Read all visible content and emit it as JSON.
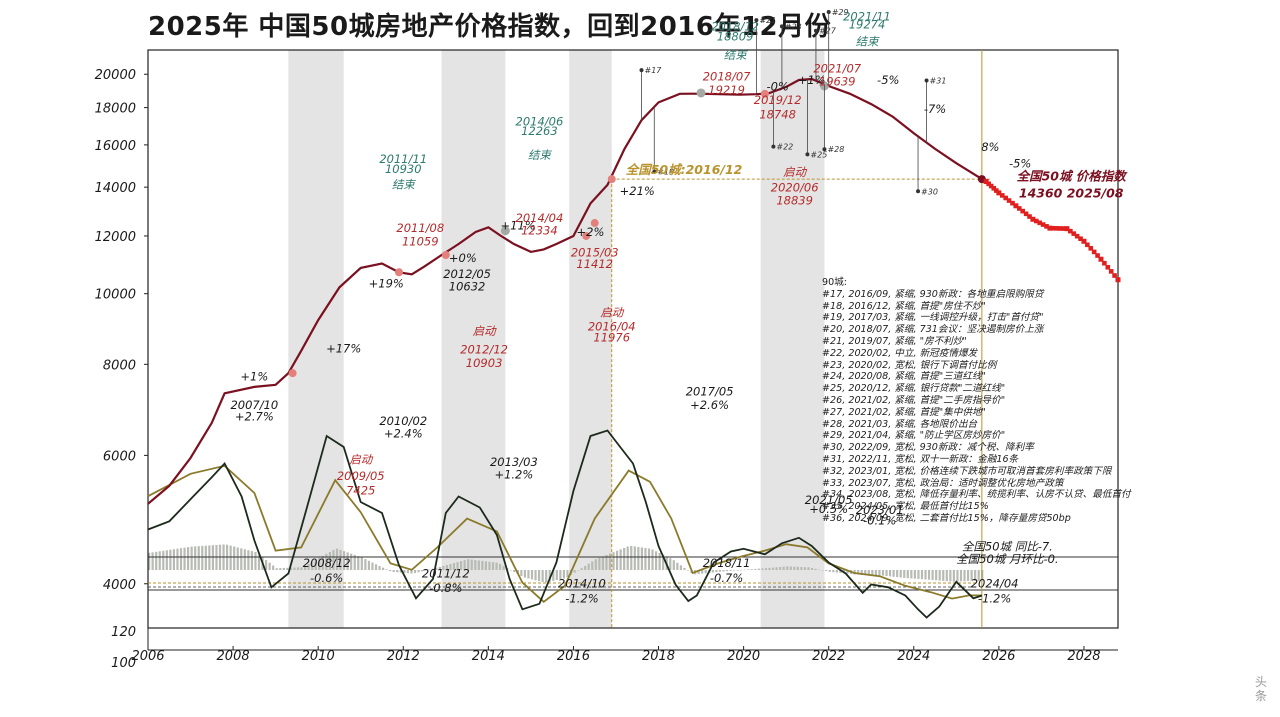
{
  "page": {
    "title": "2025年 中国50城房地产价格指数，回到2016年12月份",
    "watermark": "头条"
  },
  "colors": {
    "index_line": "#7b1020",
    "yoy_line": "#1c2a1c",
    "mom_line": "#8a7a2a",
    "bars": "#b7bbb4",
    "shade": "#e4e4e4",
    "projection": "#e01f1f",
    "marker_red": "#e3807c",
    "marker_grey": "#a5a9a5",
    "label_red": "#b52b2b",
    "label_teal": "#2d7a6e",
    "guide": "#b8932e"
  },
  "chart_data": {
    "type": "line",
    "title": "2025年 中国50城房地产价格指数，回到2016年12月份",
    "x_ticks": [
      "2006",
      "2008",
      "2010",
      "2012",
      "2014",
      "2016",
      "2018",
      "2020",
      "2022",
      "2024",
      "2026",
      "2028"
    ],
    "x_range": [
      2006,
      2028.8
    ],
    "y_ticks": [
      "4000",
      "6000",
      "8000",
      "10000",
      "12000",
      "14000",
      "16000",
      "18000",
      "20000"
    ],
    "y_ticks_bottom": [
      "120",
      "100"
    ],
    "y_scale": "log",
    "y_range": [
      3800,
      23000
    ],
    "shaded_periods": [
      [
        2009.3,
        2010.6
      ],
      [
        2012.9,
        2014.4
      ],
      [
        2015.9,
        2016.9
      ],
      [
        2020.4,
        2021.9
      ]
    ],
    "series": [
      {
        "name": "全国50城 价格指数",
        "x": [
          2006.0,
          2006.5,
          2007.0,
          2007.5,
          2007.8,
          2008.5,
          2009.0,
          2009.3,
          2009.6,
          2010.0,
          2010.5,
          2011.0,
          2011.5,
          2011.9,
          2012.2,
          2012.5,
          2012.9,
          2013.3,
          2013.7,
          2014.0,
          2014.3,
          2014.6,
          2015.0,
          2015.3,
          2015.6,
          2016.0,
          2016.4,
          2016.8,
          2017.2,
          2017.6,
          2018.0,
          2018.5,
          2018.8,
          2019.3,
          2019.9,
          2020.3,
          2020.6,
          2021.0,
          2021.3,
          2021.6,
          2022.0,
          2022.5,
          2023.0,
          2023.5,
          2024.0,
          2024.5,
          2025.0,
          2025.6
        ],
        "values": [
          5150,
          5450,
          5950,
          6650,
          7300,
          7450,
          7500,
          7780,
          8350,
          9200,
          10200,
          10850,
          11000,
          10700,
          10632,
          10900,
          11300,
          11700,
          12150,
          12334,
          12000,
          11700,
          11412,
          11500,
          11700,
          12000,
          13300,
          14100,
          15800,
          17300,
          18300,
          18800,
          18809,
          18790,
          18748,
          18780,
          18839,
          19219,
          19639,
          19700,
          19274,
          18800,
          18200,
          17500,
          16600,
          15800,
          15100,
          14360
        ]
      },
      {
        "name": "全国50城 同比",
        "x": [
          2006.0,
          2006.5,
          2007.0,
          2007.5,
          2007.8,
          2008.2,
          2008.5,
          2008.9,
          2009.3,
          2009.7,
          2010.2,
          2010.6,
          2011.0,
          2011.5,
          2011.9,
          2012.3,
          2012.7,
          2013.0,
          2013.3,
          2013.8,
          2014.2,
          2014.5,
          2014.8,
          2015.2,
          2015.6,
          2016.0,
          2016.4,
          2016.8,
          2017.1,
          2017.4,
          2017.7,
          2018.0,
          2018.4,
          2018.7,
          2018.9,
          2019.3,
          2019.7,
          2020.0,
          2020.5,
          2020.9,
          2021.3,
          2021.6,
          2022.0,
          2022.4,
          2022.8,
          2023.0,
          2023.4,
          2023.8,
          2024.1,
          2024.3,
          2024.6,
          2025.0,
          2025.4,
          2025.6
        ],
        "values": [
          5.0,
          6.5,
          10.5,
          14.5,
          17.0,
          11.0,
          3.0,
          -5.5,
          -3.0,
          8.0,
          22.0,
          20.0,
          10.0,
          8.0,
          -1.5,
          -7.5,
          -4.0,
          8.0,
          11.0,
          9.0,
          4.0,
          -4.0,
          -9.5,
          -8.5,
          -1.0,
          12.0,
          22.0,
          23.0,
          20.0,
          17.0,
          10.0,
          2.0,
          -5.0,
          -8.0,
          -7.0,
          -1.0,
          1.0,
          1.5,
          0.5,
          2.5,
          3.5,
          2.0,
          -1.0,
          -3.0,
          -6.5,
          -5.0,
          -5.5,
          -7.0,
          -9.5,
          -11.0,
          -9.0,
          -4.5,
          -7.5,
          -7.0
        ]
      },
      {
        "name": "全国50城 月环比",
        "x": [
          2006.0,
          2007.0,
          2007.8,
          2008.5,
          2009.0,
          2009.6,
          2010.4,
          2011.0,
          2011.7,
          2012.2,
          2012.8,
          2013.5,
          2014.2,
          2014.8,
          2015.3,
          2015.8,
          2016.5,
          2017.3,
          2017.8,
          2018.3,
          2018.8,
          2019.4,
          2019.9,
          2020.5,
          2021.0,
          2021.5,
          2022.0,
          2022.6,
          2023.2,
          2023.8,
          2024.4,
          2024.9,
          2025.3,
          2025.6
        ],
        "values": [
          1.9,
          2.6,
          2.85,
          2.0,
          0.2,
          0.3,
          2.4,
          1.4,
          -0.2,
          -0.4,
          0.3,
          1.2,
          0.8,
          -0.8,
          -1.4,
          -0.9,
          1.2,
          2.7,
          2.35,
          1.2,
          -0.5,
          -0.2,
          0.0,
          0.2,
          0.4,
          0.3,
          -0.2,
          -0.5,
          -0.6,
          -0.9,
          -1.1,
          -1.3,
          -1.2,
          -1.2
        ]
      }
    ],
    "projection": {
      "name": "projection",
      "x": [
        2025.7,
        2026.0,
        2026.4,
        2026.8,
        2027.2,
        2027.6,
        2028.0,
        2028.4,
        2028.8
      ],
      "values": [
        14250,
        13750,
        13200,
        12650,
        12300,
        12280,
        11800,
        11150,
        10450
      ]
    },
    "annotations": [
      {
        "x": 2008.5,
        "y": 6950,
        "text": "2007/10",
        "color": "#1a1a1a"
      },
      {
        "x": 2008.5,
        "y": 6700,
        "text": "+2.7%",
        "color": "#1a1a1a"
      },
      {
        "x": 2008.5,
        "y": 7600,
        "text": "+1%",
        "color": "#1a1a1a"
      },
      {
        "x": 2010.6,
        "y": 8300,
        "text": "+17%",
        "color": "#1a1a1a"
      },
      {
        "x": 2011.6,
        "y": 10200,
        "text": "+19%",
        "color": "#1a1a1a"
      },
      {
        "x": 2013.4,
        "y": 11050,
        "text": "+0%",
        "color": "#1a1a1a"
      },
      {
        "x": 2014.7,
        "y": 12250,
        "text": "+11%",
        "color": "#1a1a1a"
      },
      {
        "x": 2016.4,
        "y": 12000,
        "text": "+2%",
        "color": "#1a1a1a"
      },
      {
        "x": 2017.5,
        "y": 13650,
        "text": "+21%",
        "color": "#1a1a1a"
      },
      {
        "x": 2020.8,
        "y": 19000,
        "text": "-0%",
        "color": "#1a1a1a"
      },
      {
        "x": 2021.6,
        "y": 19400,
        "text": "+1%",
        "color": "#1a1a1a"
      },
      {
        "x": 2023.4,
        "y": 19400,
        "text": "-5%",
        "color": "#1a1a1a"
      },
      {
        "x": 2024.5,
        "y": 17700,
        "text": "-7%",
        "color": "#1a1a1a"
      },
      {
        "x": 2025.8,
        "y": 15700,
        "text": "8%",
        "color": "#1a1a1a"
      },
      {
        "x": 2026.5,
        "y": 14900,
        "text": "-5%",
        "color": "#1a1a1a"
      },
      {
        "x": 2012.4,
        "y": 12150,
        "text": "2011/08",
        "color": "#b52b2b"
      },
      {
        "x": 2012.4,
        "y": 11650,
        "text": "11059",
        "color": "#b52b2b"
      },
      {
        "x": 2013.5,
        "y": 10500,
        "text": "2012/05",
        "color": "#1a1a1a"
      },
      {
        "x": 2013.5,
        "y": 10100,
        "text": "10632",
        "color": "#1a1a1a"
      },
      {
        "x": 2015.2,
        "y": 12550,
        "text": "2014/04",
        "color": "#b52b2b"
      },
      {
        "x": 2015.2,
        "y": 12050,
        "text": "12334",
        "color": "#b52b2b"
      },
      {
        "x": 2016.5,
        "y": 11250,
        "text": "2015/03",
        "color": "#b52b2b"
      },
      {
        "x": 2016.5,
        "y": 10850,
        "text": "11412",
        "color": "#b52b2b"
      },
      {
        "x": 2018.6,
        "y": 14600,
        "text": "全国50城:2016/12",
        "color": "#b8932e"
      },
      {
        "x": 2019.6,
        "y": 19600,
        "text": "2018/07",
        "color": "#b52b2b"
      },
      {
        "x": 2019.6,
        "y": 18800,
        "text": "19219",
        "color": "#b52b2b"
      },
      {
        "x": 2020.8,
        "y": 18200,
        "text": "2019/12",
        "color": "#b52b2b"
      },
      {
        "x": 2020.8,
        "y": 17400,
        "text": "18748",
        "color": "#b52b2b"
      },
      {
        "x": 2022.2,
        "y": 20100,
        "text": "2021/07",
        "color": "#b52b2b"
      },
      {
        "x": 2022.2,
        "y": 19300,
        "text": "19639",
        "color": "#b52b2b"
      },
      {
        "x": 2027.7,
        "y": 14300,
        "text": "全国50城 价格指数",
        "color": "#7b1020"
      },
      {
        "x": 2027.7,
        "y": 13550,
        "text": "14360 2025/08",
        "color": "#7b1020"
      },
      {
        "x": 2012.0,
        "y": 15100,
        "text": "2011/11",
        "color": "#2d7a6e"
      },
      {
        "x": 2012.0,
        "y": 14650,
        "text": "10930",
        "color": "#2d7a6e"
      },
      {
        "x": 2012.0,
        "y": 13950,
        "text": "结束",
        "color": "#2d7a6e"
      },
      {
        "x": 2015.2,
        "y": 17000,
        "text": "2014/06",
        "color": "#2d7a6e"
      },
      {
        "x": 2015.2,
        "y": 16500,
        "text": "12263",
        "color": "#2d7a6e"
      },
      {
        "x": 2015.2,
        "y": 15300,
        "text": "结束",
        "color": "#2d7a6e"
      },
      {
        "x": 2019.8,
        "y": 22950,
        "text": "2018/12",
        "color": "#2d7a6e"
      },
      {
        "x": 2019.8,
        "y": 22250,
        "text": "18809",
        "color": "#2d7a6e"
      },
      {
        "x": 2019.8,
        "y": 21000,
        "text": "结束",
        "color": "#2d7a6e"
      },
      {
        "x": 2022.9,
        "y": 23700,
        "text": "2021/11",
        "color": "#2d7a6e"
      },
      {
        "x": 2022.9,
        "y": 23100,
        "text": "19274",
        "color": "#2d7a6e"
      },
      {
        "x": 2022.9,
        "y": 21900,
        "text": "结束",
        "color": "#2d7a6e"
      },
      {
        "x": 2013.9,
        "y": 8780,
        "text": "启动",
        "color": "#b52b2b"
      },
      {
        "x": 2013.9,
        "y": 8280,
        "text": "2012/12",
        "color": "#b52b2b"
      },
      {
        "x": 2013.9,
        "y": 7930,
        "text": "10903",
        "color": "#b52b2b"
      },
      {
        "x": 2016.9,
        "y": 9300,
        "text": "启动",
        "color": "#b52b2b"
      },
      {
        "x": 2016.9,
        "y": 8900,
        "text": "2016/04",
        "color": "#b52b2b"
      },
      {
        "x": 2016.9,
        "y": 8600,
        "text": "11976",
        "color": "#b52b2b"
      },
      {
        "x": 2021.2,
        "y": 14500,
        "text": "启动",
        "color": "#b52b2b"
      },
      {
        "x": 2021.2,
        "y": 13800,
        "text": "2020/06",
        "color": "#b52b2b"
      },
      {
        "x": 2021.2,
        "y": 13250,
        "text": "18839",
        "color": "#b52b2b"
      },
      {
        "x": 2011.0,
        "y": 5850,
        "text": "启动",
        "color": "#b52b2b"
      },
      {
        "x": 2011.0,
        "y": 5550,
        "text": "2009/05",
        "color": "#b52b2b"
      },
      {
        "x": 2011.0,
        "y": 5300,
        "text": "7425",
        "color": "#b52b2b"
      },
      {
        "x": 2012.0,
        "y": 6600,
        "text": "2010/02",
        "color": "#1a1a1a"
      },
      {
        "x": 2012.0,
        "y": 6350,
        "text": "+2.4%",
        "color": "#1a1a1a"
      },
      {
        "x": 2014.6,
        "y": 5800,
        "text": "2013/03",
        "color": "#1a1a1a"
      },
      {
        "x": 2014.6,
        "y": 5580,
        "text": "+1.2%",
        "color": "#1a1a1a"
      },
      {
        "x": 2019.2,
        "y": 7250,
        "text": "2017/05",
        "color": "#1a1a1a"
      },
      {
        "x": 2019.2,
        "y": 6950,
        "text": "+2.6%",
        "color": "#1a1a1a"
      },
      {
        "x": 2023.2,
        "y": 4990,
        "text": "2023/01",
        "color": "#1a1a1a"
      },
      {
        "x": 2023.2,
        "y": 4820,
        "text": "-0.1%",
        "color": "#1a1a1a"
      },
      {
        "x": 2022.0,
        "y": 5150,
        "text": "2021/05",
        "color": "#1a1a1a"
      },
      {
        "x": 2022.0,
        "y": 5000,
        "text": "+0.5%",
        "color": "#1a1a1a"
      },
      {
        "x": 2010.2,
        "y": 4220,
        "text": "2008/12",
        "color": "#1a1a1a"
      },
      {
        "x": 2010.2,
        "y": 4020,
        "text": "-0.6%",
        "color": "#1a1a1a"
      },
      {
        "x": 2013.0,
        "y": 4080,
        "text": "2011/12",
        "color": "#1a1a1a"
      },
      {
        "x": 2013.0,
        "y": 3900,
        "text": "-0.8%",
        "color": "#1a1a1a"
      },
      {
        "x": 2016.2,
        "y": 3950,
        "text": "2014/10",
        "color": "#1a1a1a"
      },
      {
        "x": 2016.2,
        "y": 3770,
        "text": "-1.2%",
        "color": "#1a1a1a"
      },
      {
        "x": 2019.6,
        "y": 4220,
        "text": "2018/11",
        "color": "#1a1a1a"
      },
      {
        "x": 2019.6,
        "y": 4020,
        "text": "-0.7%",
        "color": "#1a1a1a"
      },
      {
        "x": 2025.9,
        "y": 3950,
        "text": "2024/04",
        "color": "#1a1a1a"
      },
      {
        "x": 2025.9,
        "y": 3770,
        "text": "-1.2%",
        "color": "#1a1a1a"
      },
      {
        "x": 2026.2,
        "y": 4440,
        "text": "全国50城 同比-7.",
        "color": "#1a1a1a"
      },
      {
        "x": 2026.2,
        "y": 4270,
        "text": "全国50城 月环比-0.",
        "color": "#1a1a1a"
      }
    ],
    "policy_markers": [
      {
        "x": 2017.6,
        "label": "#17"
      },
      {
        "x": 2017.9,
        "label": "#19"
      },
      {
        "x": 2020.3,
        "label": "#21"
      },
      {
        "x": 2020.7,
        "label": "#22"
      },
      {
        "x": 2020.9,
        "label": "#23"
      },
      {
        "x": 2021.5,
        "label": "#25"
      },
      {
        "x": 2021.7,
        "label": "#27"
      },
      {
        "x": 2021.9,
        "label": "#28"
      },
      {
        "x": 2022.0,
        "label": "#29"
      },
      {
        "x": 2024.1,
        "label": "#30"
      },
      {
        "x": 2024.3,
        "label": "#31"
      }
    ]
  },
  "policy_notes": {
    "header": "90城:",
    "items": [
      "#17, 2016/09, 紧缩, 930新政：各地重启限购限贷",
      "#18, 2016/12, 紧缩, 首提\"房住不炒\"",
      "#19, 2017/03, 紧缩, 一线调控升级，打击\"首付贷\"",
      "#20, 2018/07, 紧缩, 731会议：坚决遏制房价上涨",
      "#21, 2019/07, 紧缩, \"房不利炒\"",
      "#22, 2020/02, 中立, 新冠疫情爆发",
      "#23, 2020/02, 宽松, 银行下调首付比例",
      "#24, 2020/08, 紧缩, 首提\"三道红线\"",
      "#25, 2020/12, 紧缩, 银行贷款\"二道红线\"",
      "#26, 2021/02, 紧缩, 首提\"二手房指导价\"",
      "#27, 2021/02, 紧缩, 首提\"集中供地\"",
      "#28, 2021/03, 紧缩, 各地限价出台",
      "#29, 2021/04, 紧缩, \"防止学区房炒房价\"",
      "#30, 2022/09, 宽松, 930新政：减个税、降利率",
      "#31, 2022/11, 宽松, 双十一新政：金融16条",
      "#32, 2023/01, 宽松, 价格连续下跌城市可取消首套房利率政策下限",
      "#33, 2023/07, 宽松, 政治局：适时调整优化房地产政策",
      "#34, 2023/08, 宽松, 降低存量利率、统揽利率、认房不认贷、最低首付",
      "#35, 2024/05, 宽松, 最低首付比15%",
      "#36, 2024/09, 宽松, 二套首付比15%，降存量房贷50bp"
    ]
  }
}
